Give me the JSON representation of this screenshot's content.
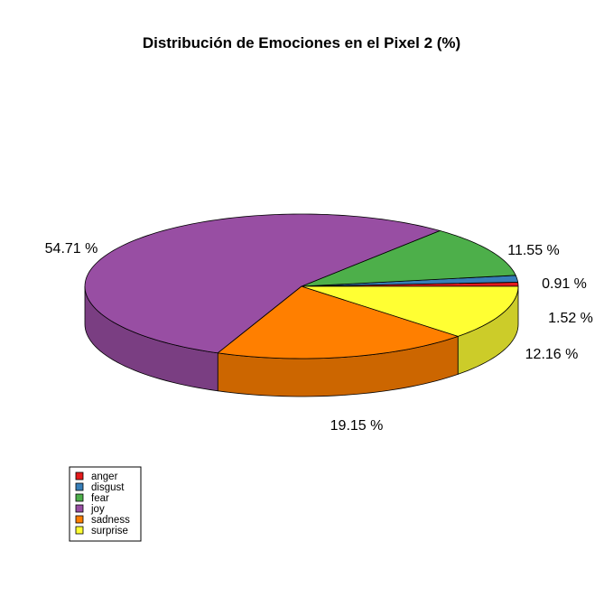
{
  "chart_data": {
    "type": "pie",
    "style": "3d",
    "title": "Distribución de Emociones en el Pixel 2 (%)",
    "categories": [
      "anger",
      "disgust",
      "fear",
      "joy",
      "sadness",
      "surprise"
    ],
    "values": [
      0.91,
      1.52,
      11.55,
      54.71,
      19.15,
      12.16
    ],
    "labels": [
      "0.91 %",
      "1.52 %",
      "11.55 %",
      "54.71 %",
      "19.15 %",
      "12.16 %"
    ],
    "colors": [
      "#e41a1c",
      "#377eb8",
      "#4daf4a",
      "#984ea3",
      "#ff7f00",
      "#ffff33"
    ],
    "legend": {
      "position": "bottom-left",
      "entries": [
        "anger",
        "disgust",
        "fear",
        "joy",
        "sadness",
        "surprise"
      ]
    }
  }
}
